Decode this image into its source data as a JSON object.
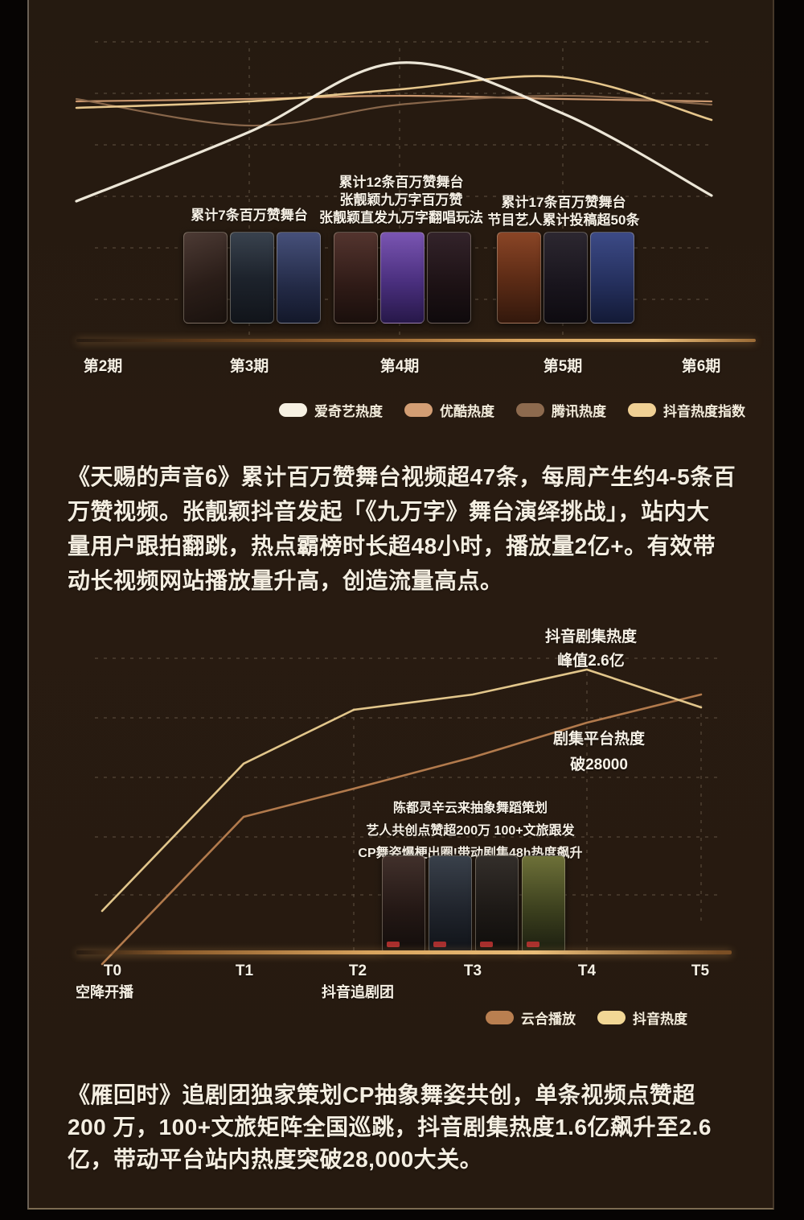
{
  "paragraphs": {
    "p1_lines": [
      "《天赐的声音6》累计百万赞舞台视频超47条，每周产生约4-5条百",
      "万赞视频。张靓颖抖音发起「《九万字》舞台演绎挑战」，站内大",
      "量用户跟拍翻跳，热点霸榜时长超48小时，播放量2亿+。有效带",
      "动长视频网站播放量升高，创造流量高点。"
    ],
    "p2_lines": [
      "《雁回时》追剧团独家策划CP抽象舞姿共创，单条视频点赞超",
      "200 万，100+文旅矩阵全国巡跳，抖音剧集热度1.6亿飙升至2.6",
      "亿，带动平台站内热度突破28,000大关。"
    ]
  },
  "chart_data": [
    {
      "type": "line",
      "categories": [
        "第2期",
        "第3期",
        "第4期",
        "第5期",
        "第6期"
      ],
      "series": [
        {
          "name": "爱奇艺热度",
          "color": "#f7f1e3",
          "values": [
            48,
            71,
            94,
            77,
            50
          ]
        },
        {
          "name": "优酷热度",
          "color": "#d39e74",
          "values": [
            81,
            82,
            83,
            82,
            81
          ]
        },
        {
          "name": "腾讯热度",
          "color": "#8d6a4e",
          "values": [
            82,
            73,
            80,
            83,
            80
          ]
        },
        {
          "name": "抖音热度指数",
          "color": "#f0d094",
          "values": [
            79,
            81,
            85,
            89,
            75
          ]
        }
      ],
      "value_scale": "relative 0-100, no numeric axis shown",
      "grid": "dashed horizontal gridlines + dashed vertical guides at 第3期/第4期/第5期",
      "legend_position": "bottom",
      "annotations": [
        {
          "target": "第3期",
          "lines": [
            "累计7条百万赞舞台"
          ]
        },
        {
          "target": "第4期",
          "lines": [
            "累计12条百万赞舞台",
            "张靓颖九万字百万赞",
            "张靓颖直发九万字翻唱玩法"
          ]
        },
        {
          "target": "第5期",
          "lines": [
            "累计17条百万赞舞台",
            "节目艺人累计投稿超50条"
          ]
        }
      ]
    },
    {
      "type": "line",
      "categories": [
        "T0",
        "T1",
        "T2",
        "T3",
        "T4",
        "T5"
      ],
      "x_sublabels": [
        "空降开播",
        "",
        "抖音追剧团",
        "",
        "",
        ""
      ],
      "series": [
        {
          "name": "云合播放",
          "color": "#b97f50",
          "values": [
            3,
            50,
            59,
            69,
            80,
            89
          ]
        },
        {
          "name": "抖音热度",
          "color": "#ecd092",
          "values": [
            20,
            67,
            84,
            89,
            97,
            85
          ]
        }
      ],
      "value_scale": "relative 0-100, no numeric axis shown; 抖音热度 peak = 2.6亿, 平台热度 breaks 28000",
      "grid": "dashed horizontal gridlines + dashed vertical guides at T2/T4/T5",
      "legend_position": "bottom",
      "annotations": [
        {
          "target": "T4",
          "lines": [
            "抖音剧集热度",
            "峰值2.6亿"
          ]
        },
        {
          "target": "T4",
          "lines": [
            "剧集平台热度",
            "破28000"
          ]
        },
        {
          "target": "T3",
          "lines": [
            "陈都灵辛云来抽象舞蹈策划",
            "艺人共创点赞超200万 100+文旅跟发",
            "CP舞姿爆梗出圈!带动剧集48h热度飙升"
          ]
        }
      ]
    }
  ],
  "colors": {
    "card_bg": "#271b11",
    "text": "#f4eee1",
    "axis_glow": "#e0ab62"
  }
}
